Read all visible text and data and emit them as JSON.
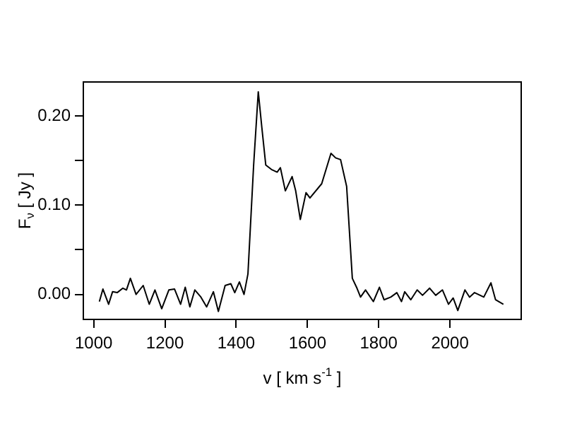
{
  "chart_data": {
    "type": "line",
    "xlabel": "v [ km s$^{-1}$ ]",
    "ylabel": "F$_{ν}$ [ Jy ]",
    "xlim": [
      971,
      2200
    ],
    "ylim": [
      -0.028,
      0.238
    ],
    "xticks": [
      1000,
      1200,
      1400,
      1600,
      1800,
      2000
    ],
    "yticks": [
      {
        "value": 0,
        "label": "0.00"
      },
      {
        "value": 0.05,
        "label": null
      },
      {
        "value": 0.1,
        "label": "0.10"
      },
      {
        "value": 0.15,
        "label": null
      },
      {
        "value": 0.2,
        "label": "0.20"
      }
    ],
    "grid": false,
    "legend": false,
    "marker": "none",
    "line_style": "solid",
    "series": [
      {
        "color": "#000000",
        "x": [
          1016,
          1026,
          1042,
          1053,
          1066,
          1082,
          1092,
          1103,
          1119,
          1139,
          1156,
          1172,
          1191,
          1211,
          1227,
          1244,
          1257,
          1270,
          1284,
          1301,
          1317,
          1336,
          1350,
          1369,
          1385,
          1396,
          1409,
          1422,
          1433,
          1449,
          1462,
          1472,
          1483,
          1499,
          1515,
          1524,
          1538,
          1557,
          1567,
          1580,
          1596,
          1607,
          1640,
          1666,
          1679,
          1693,
          1710,
          1726,
          1739,
          1749,
          1763,
          1785,
          1802,
          1815,
          1834,
          1851,
          1864,
          1873,
          1890,
          1908,
          1923,
          1943,
          1960,
          1979,
          1996,
          2009,
          2022,
          2042,
          2055,
          2069,
          2095,
          2115,
          2128,
          2150
        ],
        "values": [
          -0.008,
          0.006,
          -0.011,
          0.003,
          0.002,
          0.007,
          0.005,
          0.018,
          0,
          0.01,
          -0.011,
          0.005,
          -0.016,
          0.005,
          0.006,
          -0.011,
          0.008,
          -0.014,
          0.005,
          -0.003,
          -0.014,
          0.003,
          -0.019,
          0.01,
          0.012,
          0.002,
          0.014,
          0,
          0.023,
          0.145,
          0.227,
          0.187,
          0.145,
          0.14,
          0.137,
          0.142,
          0.116,
          0.132,
          0.116,
          0.084,
          0.114,
          0.108,
          0.124,
          0.158,
          0.153,
          0.151,
          0.121,
          0.018,
          0.007,
          -0.003,
          0.005,
          -0.008,
          0.008,
          -0.006,
          -0.003,
          0.002,
          -0.008,
          0.003,
          -0.006,
          0.005,
          -0.001,
          0.007,
          -0.001,
          0.005,
          -0.011,
          -0.004,
          -0.018,
          0.005,
          -0.003,
          0.002,
          -0.003,
          0.013,
          -0.006,
          -0.011
        ]
      }
    ]
  }
}
